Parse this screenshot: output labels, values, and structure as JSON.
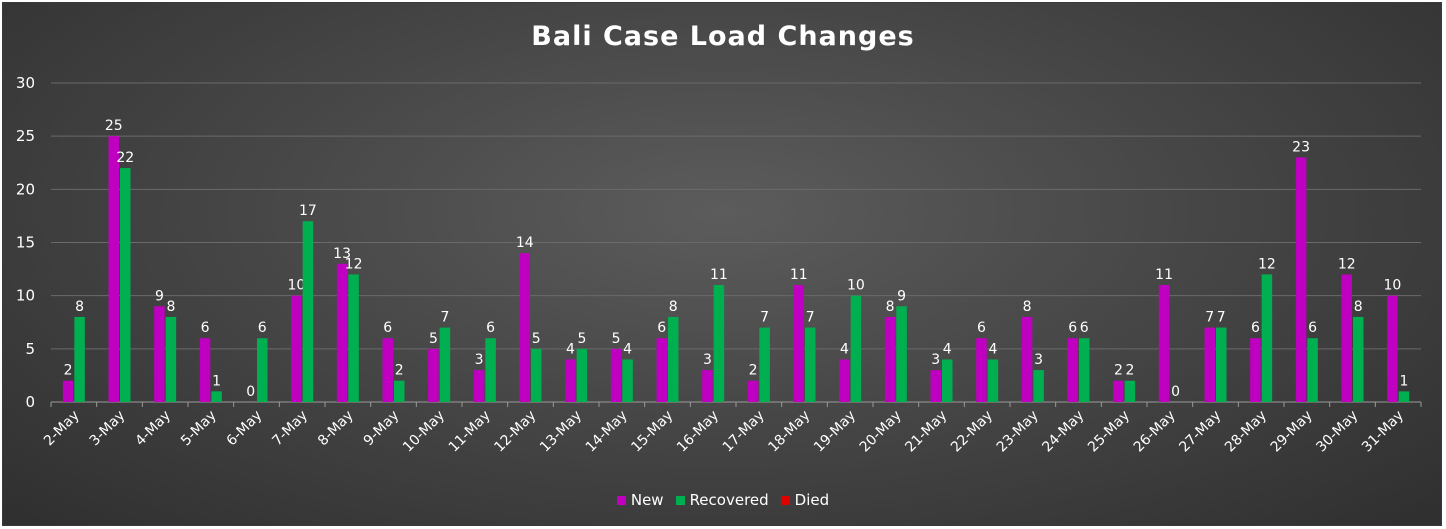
{
  "chart_data": {
    "type": "bar",
    "title": "Bali Case Load Changes",
    "xlabel": "",
    "ylabel": "",
    "ylim": [
      0,
      30
    ],
    "yticks": [
      "0",
      "5",
      "10",
      "15",
      "20",
      "25",
      "30"
    ],
    "grid": true,
    "legend_position": "bottom",
    "categories": [
      "2-May",
      "3-May",
      "4-May",
      "5-May",
      "6-May",
      "7-May",
      "8-May",
      "9-May",
      "10-May",
      "11-May",
      "12-May",
      "13-May",
      "14-May",
      "15-May",
      "16-May",
      "17-May",
      "18-May",
      "19-May",
      "20-May",
      "21-May",
      "22-May",
      "23-May",
      "24-May",
      "25-May",
      "26-May",
      "27-May",
      "28-May",
      "29-May",
      "30-May",
      "31-May"
    ],
    "series": [
      {
        "name": "New",
        "color": "#c000c0",
        "values": [
          2,
          25,
          9,
          6,
          0,
          10,
          13,
          6,
          5,
          3,
          14,
          4,
          5,
          6,
          3,
          2,
          11,
          4,
          8,
          3,
          6,
          8,
          6,
          2,
          11,
          7,
          6,
          23,
          12,
          10
        ]
      },
      {
        "name": "Recovered",
        "color": "#00b050",
        "values": [
          8,
          22,
          8,
          1,
          6,
          17,
          12,
          2,
          7,
          6,
          5,
          5,
          4,
          8,
          11,
          7,
          7,
          10,
          9,
          4,
          4,
          3,
          6,
          2,
          0,
          7,
          12,
          6,
          8,
          1
        ]
      },
      {
        "name": "Died",
        "color": "#e00000",
        "values": [
          null,
          null,
          null,
          null,
          null,
          null,
          null,
          null,
          null,
          null,
          null,
          null,
          null,
          null,
          null,
          null,
          null,
          null,
          null,
          null,
          null,
          null,
          null,
          null,
          null,
          null,
          null,
          null,
          null,
          null
        ]
      }
    ]
  }
}
